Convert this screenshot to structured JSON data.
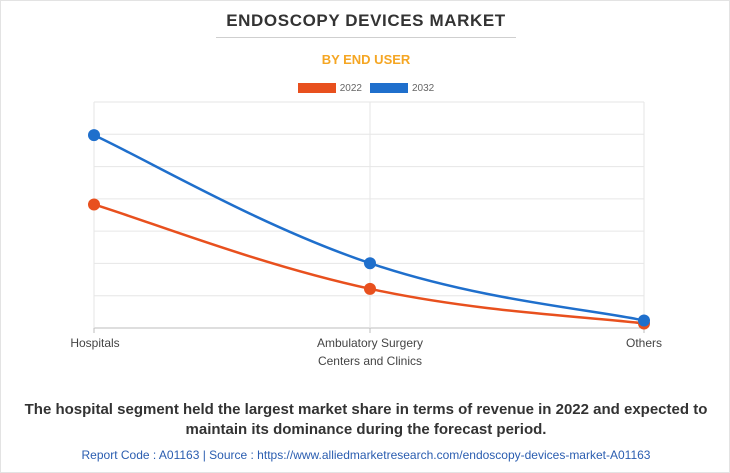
{
  "chart_data": {
    "type": "line",
    "title": "ENDOSCOPY DEVICES MARKET",
    "subtitle": "BY END USER",
    "categories": [
      "Hospitals",
      "Ambulatory Surgery Centers and Clinics",
      "Others"
    ],
    "category_lines": [
      [
        "Hospitals"
      ],
      [
        "Ambulatory Surgery",
        "Centers and Clinics"
      ],
      [
        "Others"
      ]
    ],
    "series": [
      {
        "name": "2022",
        "color": "#e8501e",
        "values": [
          4.1,
          1.3,
          0.15
        ]
      },
      {
        "name": "2032",
        "color": "#1f6fcc",
        "values": [
          6.4,
          2.15,
          0.25
        ]
      }
    ],
    "ylim": [
      0,
      7.5
    ],
    "xlabel": "",
    "ylabel": "",
    "grid": true,
    "legend": "top-center"
  },
  "footnote": "The hospital segment held the largest market share in terms of revenue in 2022 and expected to maintain its dominance during the forecast period.",
  "source": "Report Code : A01163  |  Source : https://www.alliedmarketresearch.com/endoscopy-devices-market-A01163"
}
